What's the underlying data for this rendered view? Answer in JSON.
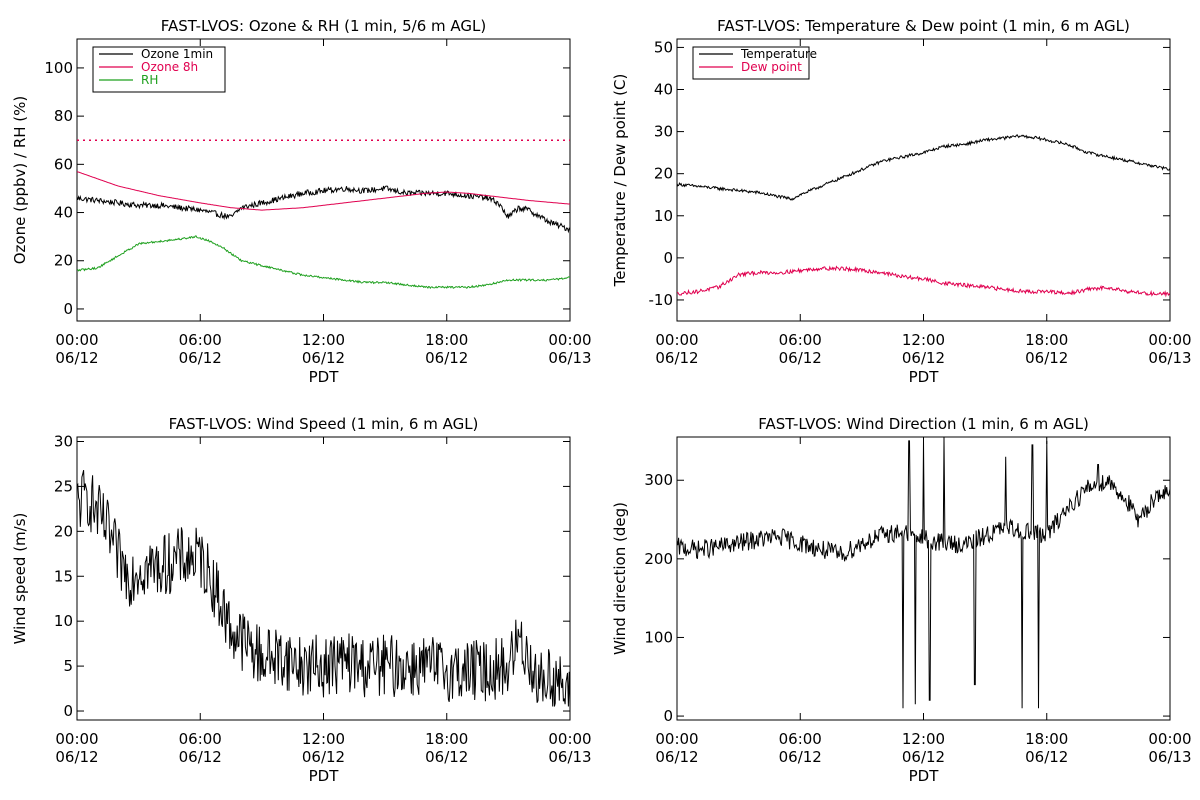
{
  "colors": {
    "black": "#000000",
    "red": "#e0004f",
    "green": "#1fa01f"
  },
  "chart_data": [
    {
      "type": "line",
      "title": "FAST-LVOS: Ozone & RH (1 min, 5/6 m AGL)",
      "xlabel": "PDT",
      "ylabel": "Ozone (ppbv) / RH (%)",
      "xlim": [
        "06/12 00:00",
        "06/13 00:00"
      ],
      "ylim": [
        -5,
        112
      ],
      "yticks": [
        0,
        20,
        40,
        60,
        80,
        100
      ],
      "xticks": [
        "00:00",
        "06:00",
        "12:00",
        "18:00",
        "00:00"
      ],
      "xticks_date": [
        "06/12",
        "06/12",
        "06/12",
        "06/12",
        "06/13"
      ],
      "legend_position": "top-left",
      "reference_line": {
        "y": 70,
        "style": "dotted",
        "color": "#e0004f"
      },
      "series": [
        {
          "name": "Ozone 1min",
          "color": "#000000",
          "noise": 1.2,
          "points": [
            [
              0,
              46
            ],
            [
              1,
              45
            ],
            [
              2,
              44
            ],
            [
              3,
              43
            ],
            [
              4,
              43
            ],
            [
              5,
              42
            ],
            [
              6,
              41
            ],
            [
              7,
              39
            ],
            [
              7.5,
              38
            ],
            [
              8,
              42
            ],
            [
              9,
              44
            ],
            [
              10,
              46
            ],
            [
              11,
              48
            ],
            [
              12,
              49
            ],
            [
              13,
              50
            ],
            [
              14,
              49
            ],
            [
              15,
              50
            ],
            [
              16,
              48
            ],
            [
              17,
              48
            ],
            [
              18,
              48
            ],
            [
              19,
              47
            ],
            [
              20,
              46
            ],
            [
              20.5,
              44
            ],
            [
              21,
              38
            ],
            [
              21.5,
              42
            ],
            [
              22,
              41
            ],
            [
              23,
              36
            ],
            [
              24,
              33
            ]
          ]
        },
        {
          "name": "Ozone 8h",
          "color": "#e0004f",
          "noise": 0,
          "points": [
            [
              0,
              57
            ],
            [
              2,
              51
            ],
            [
              4,
              47
            ],
            [
              6,
              44
            ],
            [
              7.5,
              42
            ],
            [
              9,
              41
            ],
            [
              11,
              42
            ],
            [
              13,
              44
            ],
            [
              15,
              46
            ],
            [
              17,
              48
            ],
            [
              18,
              48.5
            ],
            [
              19,
              48
            ],
            [
              20,
              47
            ],
            [
              21,
              46
            ],
            [
              22,
              45
            ],
            [
              24,
              43.5
            ]
          ]
        },
        {
          "name": "RH",
          "color": "#1fa01f",
          "noise": 0.4,
          "points": [
            [
              0,
              16
            ],
            [
              1,
              17
            ],
            [
              2,
              22
            ],
            [
              3,
              27
            ],
            [
              4,
              28
            ],
            [
              5,
              29
            ],
            [
              5.8,
              30
            ],
            [
              6.5,
              28
            ],
            [
              7,
              26
            ],
            [
              8,
              20
            ],
            [
              9,
              18
            ],
            [
              10,
              16
            ],
            [
              11,
              14
            ],
            [
              12,
              13
            ],
            [
              13,
              12
            ],
            [
              14,
              11
            ],
            [
              15,
              11
            ],
            [
              16,
              10
            ],
            [
              17,
              9
            ],
            [
              18,
              9
            ],
            [
              19,
              9
            ],
            [
              20,
              10
            ],
            [
              21,
              12
            ],
            [
              22,
              12
            ],
            [
              23,
              12
            ],
            [
              24,
              13
            ]
          ]
        }
      ]
    },
    {
      "type": "line",
      "title": "FAST-LVOS: Temperature & Dew point (1 min, 6 m AGL)",
      "xlabel": "PDT",
      "ylabel": "Temperature / Dew point (C)",
      "xlim": [
        "06/12 00:00",
        "06/13 00:00"
      ],
      "ylim": [
        -15,
        52
      ],
      "yticks": [
        -10,
        0,
        10,
        20,
        30,
        40,
        50
      ],
      "xticks": [
        "00:00",
        "06:00",
        "12:00",
        "18:00",
        "00:00"
      ],
      "xticks_date": [
        "06/12",
        "06/12",
        "06/12",
        "06/12",
        "06/13"
      ],
      "legend_position": "top-left",
      "series": [
        {
          "name": "Temperature",
          "color": "#000000",
          "noise": 0.35,
          "points": [
            [
              0,
              17.5
            ],
            [
              1,
              17
            ],
            [
              2,
              16.5
            ],
            [
              3,
              16
            ],
            [
              4,
              15.5
            ],
            [
              5,
              14.5
            ],
            [
              5.6,
              14
            ],
            [
              6,
              15
            ],
            [
              7,
              17
            ],
            [
              8,
              19
            ],
            [
              9,
              21
            ],
            [
              10,
              23
            ],
            [
              11,
              24
            ],
            [
              12,
              25
            ],
            [
              13,
              26.5
            ],
            [
              14,
              27
            ],
            [
              15,
              28
            ],
            [
              16,
              28.5
            ],
            [
              16.7,
              29
            ],
            [
              17.5,
              28.5
            ],
            [
              18,
              28
            ],
            [
              19,
              27
            ],
            [
              20,
              25
            ],
            [
              21,
              24
            ],
            [
              22,
              23
            ],
            [
              23,
              22
            ],
            [
              24,
              21
            ]
          ]
        },
        {
          "name": "Dew point",
          "color": "#e0004f",
          "noise": 0.45,
          "points": [
            [
              0,
              -8.5
            ],
            [
              1,
              -8
            ],
            [
              2,
              -7
            ],
            [
              3,
              -4
            ],
            [
              4,
              -3.5
            ],
            [
              5,
              -3.5
            ],
            [
              6,
              -3
            ],
            [
              7,
              -2.5
            ],
            [
              8,
              -2.5
            ],
            [
              9,
              -3
            ],
            [
              10,
              -3.5
            ],
            [
              11,
              -4.5
            ],
            [
              12,
              -5
            ],
            [
              13,
              -6
            ],
            [
              14,
              -6.5
            ],
            [
              15,
              -7
            ],
            [
              16,
              -7.5
            ],
            [
              17,
              -8
            ],
            [
              18,
              -8
            ],
            [
              19,
              -8.5
            ],
            [
              20,
              -7.5
            ],
            [
              21,
              -7
            ],
            [
              22,
              -8
            ],
            [
              23,
              -8.5
            ],
            [
              24,
              -8.5
            ]
          ]
        }
      ]
    },
    {
      "type": "line",
      "title": "FAST-LVOS: Wind Speed (1 min, 6 m AGL)",
      "xlabel": "PDT",
      "ylabel": "Wind speed (m/s)",
      "xlim": [
        "06/12 00:00",
        "06/13 00:00"
      ],
      "ylim": [
        -1,
        30.5
      ],
      "yticks": [
        0,
        5,
        10,
        15,
        20,
        25,
        30
      ],
      "xticks": [
        "00:00",
        "06:00",
        "12:00",
        "18:00",
        "00:00"
      ],
      "xticks_date": [
        "06/12",
        "06/12",
        "06/12",
        "06/12",
        "06/13"
      ],
      "series": [
        {
          "name": "",
          "color": "#000000",
          "noise": 3.5,
          "min": 0.5,
          "points": [
            [
              0,
              23
            ],
            [
              0.5,
              24
            ],
            [
              1,
              22
            ],
            [
              1.5,
              20
            ],
            [
              2,
              17
            ],
            [
              2.5,
              15
            ],
            [
              3,
              16
            ],
            [
              4,
              16
            ],
            [
              5,
              17
            ],
            [
              6,
              17
            ],
            [
              6.5,
              15
            ],
            [
              7,
              12
            ],
            [
              7.5,
              9
            ],
            [
              8,
              8
            ],
            [
              9,
              6
            ],
            [
              10,
              6
            ],
            [
              11,
              5
            ],
            [
              12,
              5
            ],
            [
              13,
              5.5
            ],
            [
              14,
              5
            ],
            [
              15,
              5
            ],
            [
              16,
              5
            ],
            [
              17,
              5
            ],
            [
              18,
              4.5
            ],
            [
              19,
              4.5
            ],
            [
              20,
              4.5
            ],
            [
              21,
              5
            ],
            [
              21.5,
              8
            ],
            [
              22,
              6
            ],
            [
              22.5,
              3
            ],
            [
              23,
              4
            ],
            [
              23.5,
              3
            ],
            [
              24,
              1
            ]
          ]
        }
      ]
    },
    {
      "type": "line",
      "title": "FAST-LVOS: Wind Direction (1 min, 6 m AGL)",
      "xlabel": "PDT",
      "ylabel": "Wind direction (deg)",
      "xlim": [
        "06/12 00:00",
        "06/13 00:00"
      ],
      "ylim": [
        -5,
        355
      ],
      "yticks": [
        0,
        100,
        200,
        300
      ],
      "xticks": [
        "00:00",
        "06:00",
        "12:00",
        "18:00",
        "00:00"
      ],
      "xticks_date": [
        "06/12",
        "06/12",
        "06/12",
        "06/12",
        "06/13"
      ],
      "series": [
        {
          "name": "",
          "color": "#000000",
          "noise": 12,
          "max": 355,
          "min": 10,
          "points": [
            [
              0,
              215
            ],
            [
              1,
              212
            ],
            [
              2,
              215
            ],
            [
              3,
              220
            ],
            [
              4,
              225
            ],
            [
              5,
              228
            ],
            [
              6,
              220
            ],
            [
              7,
              212
            ],
            [
              8,
              205
            ],
            [
              9,
              220
            ],
            [
              10,
              230
            ],
            [
              11,
              235
            ],
            [
              12,
              225
            ],
            [
              13,
              220
            ],
            [
              14,
              218
            ],
            [
              15,
              230
            ],
            [
              16,
              240
            ],
            [
              17,
              235
            ],
            [
              18,
              230
            ],
            [
              19,
              265
            ],
            [
              20,
              290
            ],
            [
              21,
              300
            ],
            [
              22,
              270
            ],
            [
              22.5,
              245
            ],
            [
              23,
              270
            ],
            [
              23.5,
              285
            ],
            [
              24,
              280
            ]
          ],
          "spikes": [
            [
              11,
              10
            ],
            [
              11.3,
              350
            ],
            [
              11.6,
              15
            ],
            [
              12,
              350
            ],
            [
              12.3,
              20
            ],
            [
              13,
              355
            ],
            [
              14.5,
              40
            ],
            [
              16,
              330
            ],
            [
              16.8,
              5
            ],
            [
              17.3,
              345
            ],
            [
              17.6,
              10
            ],
            [
              18,
              350
            ],
            [
              20.5,
              320
            ]
          ]
        }
      ]
    }
  ]
}
